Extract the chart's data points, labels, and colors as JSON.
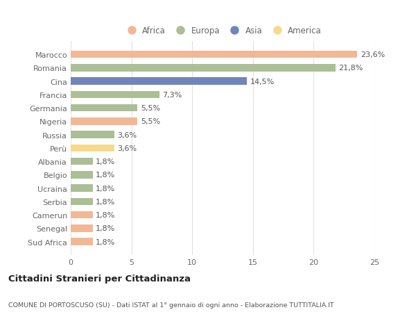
{
  "categories": [
    "Marocco",
    "Romania",
    "Cina",
    "Francia",
    "Germania",
    "Nigeria",
    "Russia",
    "Perù",
    "Albania",
    "Belgio",
    "Ucraina",
    "Serbia",
    "Camerun",
    "Senegal",
    "Sud Africa"
  ],
  "values": [
    23.6,
    21.8,
    14.5,
    7.3,
    5.5,
    5.5,
    3.6,
    3.6,
    1.8,
    1.8,
    1.8,
    1.8,
    1.8,
    1.8,
    1.8
  ],
  "labels": [
    "23,6%",
    "21,8%",
    "14,5%",
    "7,3%",
    "5,5%",
    "5,5%",
    "3,6%",
    "3,6%",
    "1,8%",
    "1,8%",
    "1,8%",
    "1,8%",
    "1,8%",
    "1,8%",
    "1,8%"
  ],
  "colors": [
    "#F2B896",
    "#ABBE96",
    "#7085B8",
    "#ABBE96",
    "#ABBE96",
    "#F2B896",
    "#ABBE96",
    "#F6D98A",
    "#ABBE96",
    "#ABBE96",
    "#ABBE96",
    "#ABBE96",
    "#F2B896",
    "#F2B896",
    "#F2B896"
  ],
  "legend_labels": [
    "Africa",
    "Europa",
    "Asia",
    "America"
  ],
  "legend_colors": [
    "#F2B896",
    "#ABBE96",
    "#7085B8",
    "#F6D98A"
  ],
  "title": "Cittadini Stranieri per Cittadinanza",
  "subtitle": "COMUNE DI PORTOSCUSO (SU) - Dati ISTAT al 1° gennaio di ogni anno - Elaborazione TUTTITALIA.IT",
  "xlim": [
    0,
    25
  ],
  "xticks": [
    0,
    5,
    10,
    15,
    20,
    25
  ],
  "background_color": "#ffffff",
  "grid_color": "#e0e0e0",
  "bar_height": 0.55,
  "label_fontsize": 8,
  "ytick_fontsize": 8,
  "xtick_fontsize": 8
}
